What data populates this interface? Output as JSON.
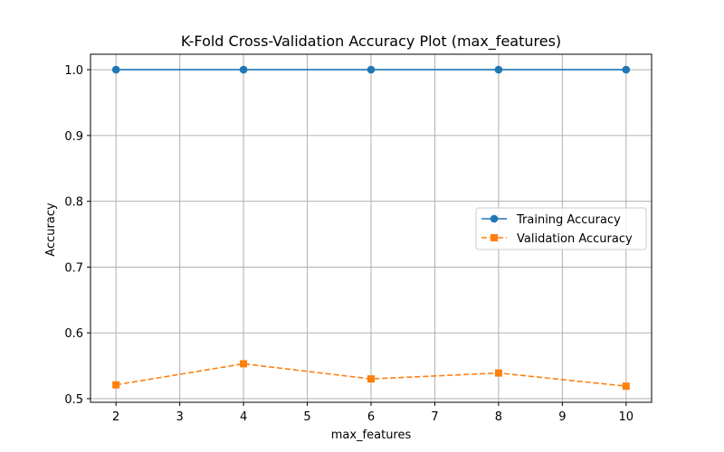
{
  "chart_data": {
    "type": "line",
    "title": "K-Fold Cross-Validation Accuracy Plot (max_features)",
    "xlabel": "max_features",
    "ylabel": "Accuracy",
    "x": [
      2,
      4,
      6,
      8,
      10
    ],
    "xlim": [
      1.6,
      10.4
    ],
    "ylim": [
      0.4945,
      1.0235
    ],
    "x_ticks": [
      2,
      3,
      4,
      5,
      6,
      7,
      8,
      9,
      10
    ],
    "y_ticks": [
      0.5,
      0.6,
      0.7,
      0.8,
      0.9,
      1.0
    ],
    "x_tick_labels": [
      "2",
      "3",
      "4",
      "5",
      "6",
      "7",
      "8",
      "9",
      "10"
    ],
    "y_tick_labels": [
      "0.5",
      "0.6",
      "0.7",
      "0.8",
      "0.9",
      "1.0"
    ],
    "grid": true,
    "legend_position": "center-right",
    "series": [
      {
        "name": "Training Accuracy",
        "values": [
          1.0,
          1.0,
          1.0,
          1.0,
          1.0
        ],
        "color": "#1f77b4",
        "line_style": "solid",
        "marker": "circle"
      },
      {
        "name": "Validation Accuracy",
        "values": [
          0.521,
          0.553,
          0.53,
          0.539,
          0.519
        ],
        "color": "#ff7f0e",
        "line_style": "dashed",
        "marker": "square"
      }
    ]
  }
}
